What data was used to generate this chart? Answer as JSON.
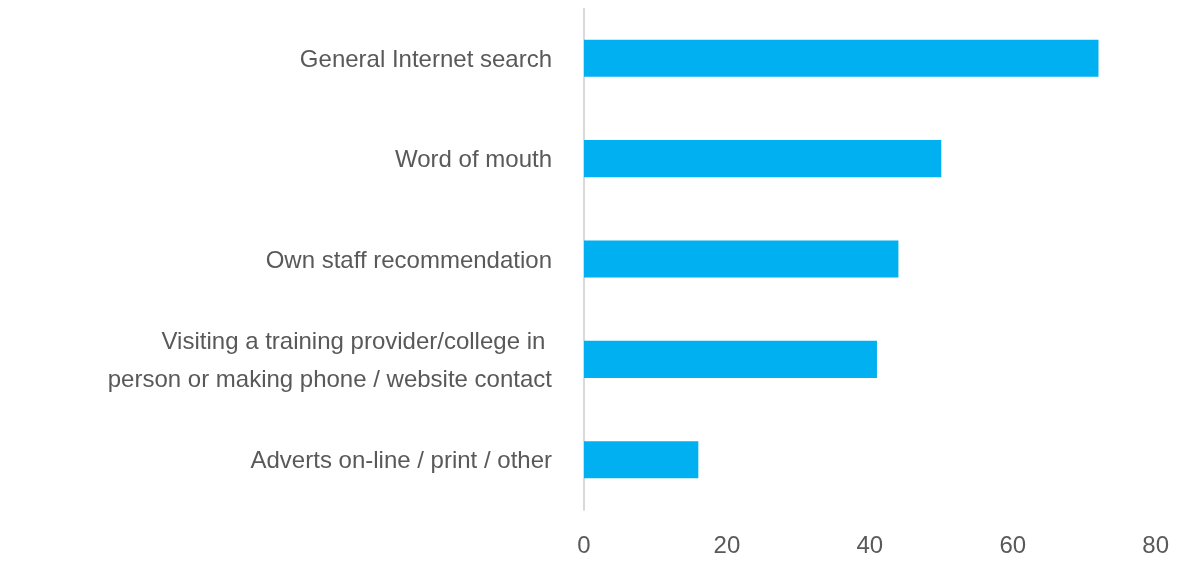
{
  "chart_data": {
    "type": "bar",
    "orientation": "horizontal",
    "categories": [
      "General Internet search",
      "Word of mouth",
      "Own staff recommendation",
      "Visiting a training provider/college in person or making phone / website contact",
      "Adverts on-line / print / other"
    ],
    "values": [
      72,
      50,
      44,
      41,
      16
    ],
    "color": "#00b0f0",
    "xlim": [
      0,
      80
    ],
    "xticks": [
      0,
      20,
      40,
      60,
      80
    ],
    "grid": false
  }
}
